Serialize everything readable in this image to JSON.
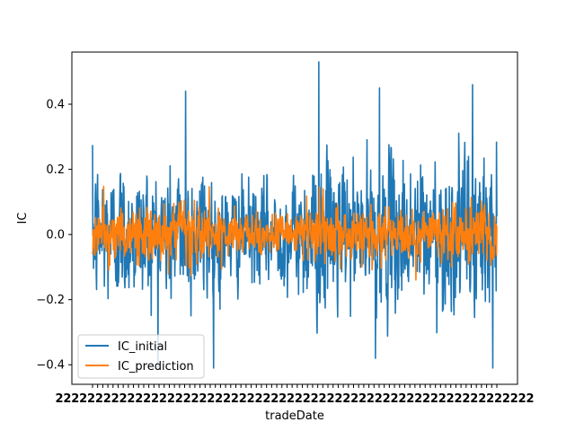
{
  "chart_data": {
    "type": "line",
    "title": "",
    "xlabel": "tradeDate",
    "ylabel": "IC",
    "ylim": [
      -0.46,
      0.56
    ],
    "yticks": [
      -0.4,
      -0.2,
      0.0,
      0.2,
      0.4
    ],
    "ytick_labels": [
      "−0.4",
      "−0.2",
      "0.0",
      "0.2",
      "0.4"
    ],
    "x_tick_labels_overlapping": true,
    "x_tick_label_shown": "2",
    "x_points": 1200,
    "grid": false,
    "legend_position": "lower-left",
    "series": [
      {
        "name": "IC_initial",
        "color": "#1f77b4",
        "min": -0.41,
        "max": 0.53,
        "mean": 0.0,
        "stdev": 0.11,
        "peaks": [
          {
            "frac": 0.56,
            "value": 0.53
          },
          {
            "frac": 0.23,
            "value": 0.44
          },
          {
            "frac": 0.94,
            "value": 0.46
          },
          {
            "frac": 0.71,
            "value": 0.45
          },
          {
            "frac": 0.99,
            "value": -0.41
          },
          {
            "frac": 0.7,
            "value": -0.38
          }
        ]
      },
      {
        "name": "IC_prediction",
        "color": "#ff7f0e",
        "min": -0.24,
        "max": 0.26,
        "mean": 0.0,
        "stdev": 0.045
      }
    ]
  }
}
